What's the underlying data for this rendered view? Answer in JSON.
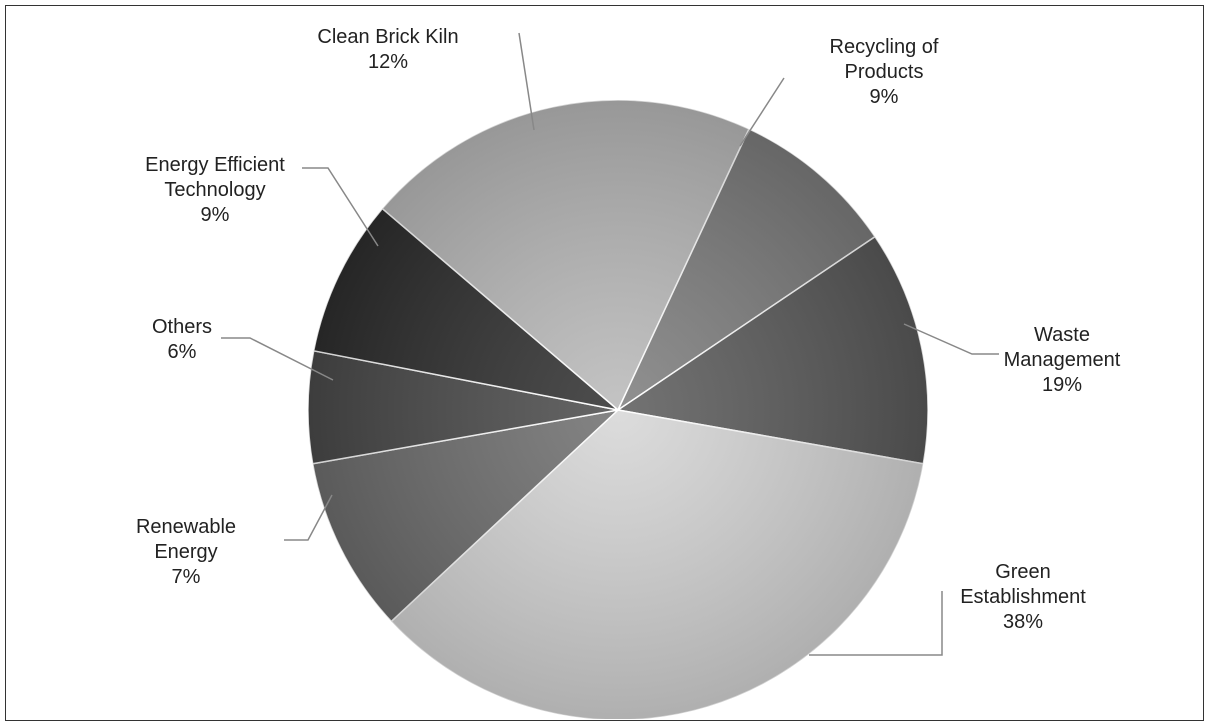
{
  "chart_data": {
    "type": "pie",
    "title": "",
    "slices": [
      {
        "label_lines": [
          "Clean Brick Kiln"
        ],
        "percent_text": "12%",
        "value": 12,
        "color": "#b9b9b9"
      },
      {
        "label_lines": [
          "Recycling of",
          "Products"
        ],
        "percent_text": "9%",
        "value": 9,
        "color": "#7d7d7d"
      },
      {
        "label_lines": [
          "Waste",
          "Management"
        ],
        "percent_text": "19%",
        "value": 19,
        "color": "#5a5a5a"
      },
      {
        "label_lines": [
          "Green",
          "Establishment"
        ],
        "percent_text": "38%",
        "value": 38,
        "color": "#d6d6d6"
      },
      {
        "label_lines": [
          "Renewable",
          "Energy"
        ],
        "percent_text": "7%",
        "value": 7,
        "color": "#6e6e6e"
      },
      {
        "label_lines": [
          "Others"
        ],
        "percent_text": "6%",
        "value": 6,
        "color": "#4a4a4a"
      },
      {
        "label_lines": [
          "Energy Efficient",
          "Technology"
        ],
        "percent_text": "9%",
        "value": 9,
        "color": "#2e2e2e"
      }
    ],
    "legend": "none",
    "labels_placement": "outside with leader lines"
  }
}
